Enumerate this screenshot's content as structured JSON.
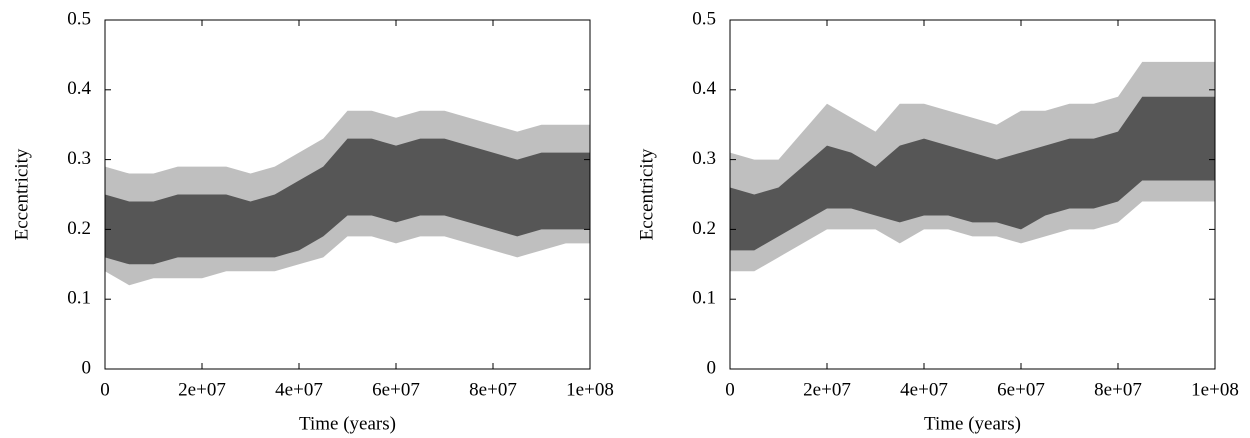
{
  "chart_data": [
    {
      "type": "band",
      "x_label": "Time (years)",
      "y_label": "Eccentricity",
      "x": [
        0,
        5000000,
        10000000,
        15000000,
        20000000,
        25000000,
        30000000,
        35000000,
        40000000,
        45000000,
        50000000,
        55000000,
        60000000,
        65000000,
        70000000,
        75000000,
        80000000,
        85000000,
        90000000,
        95000000,
        100000000
      ],
      "bands": [
        {
          "color": "#b8b8b8",
          "low": [
            0.14,
            0.12,
            0.13,
            0.13,
            0.13,
            0.14,
            0.14,
            0.14,
            0.15,
            0.16,
            0.19,
            0.19,
            0.18,
            0.19,
            0.19,
            0.18,
            0.17,
            0.16,
            0.17,
            0.18,
            0.18
          ],
          "high": [
            0.29,
            0.28,
            0.28,
            0.29,
            0.29,
            0.29,
            0.28,
            0.29,
            0.31,
            0.33,
            0.37,
            0.37,
            0.36,
            0.37,
            0.37,
            0.36,
            0.35,
            0.34,
            0.35,
            0.35,
            0.35
          ]
        },
        {
          "color": "#4a4a4a",
          "low": [
            0.16,
            0.15,
            0.15,
            0.16,
            0.16,
            0.16,
            0.16,
            0.16,
            0.17,
            0.19,
            0.22,
            0.22,
            0.21,
            0.22,
            0.22,
            0.21,
            0.2,
            0.19,
            0.2,
            0.2,
            0.2
          ],
          "high": [
            0.25,
            0.24,
            0.24,
            0.25,
            0.25,
            0.25,
            0.24,
            0.25,
            0.27,
            0.29,
            0.33,
            0.33,
            0.32,
            0.33,
            0.33,
            0.32,
            0.31,
            0.3,
            0.31,
            0.31,
            0.31
          ]
        }
      ],
      "xlim": [
        0,
        100000000
      ],
      "ylim": [
        0,
        0.5
      ],
      "xticks": [
        0,
        {
          "value": 20000000,
          "label": "2e+07"
        },
        {
          "value": 40000000,
          "label": "4e+07"
        },
        {
          "value": 60000000,
          "label": "6e+07"
        },
        {
          "value": 80000000,
          "label": "8e+07"
        },
        {
          "value": 100000000,
          "label": "1e+08"
        }
      ],
      "yticks": [
        0,
        0.1,
        0.2,
        0.3,
        0.4,
        0.5
      ]
    },
    {
      "type": "band",
      "x_label": "Time (years)",
      "y_label": "Eccentricity",
      "x": [
        0,
        5000000,
        10000000,
        15000000,
        20000000,
        25000000,
        30000000,
        35000000,
        40000000,
        45000000,
        50000000,
        55000000,
        60000000,
        65000000,
        70000000,
        75000000,
        80000000,
        85000000,
        90000000,
        95000000,
        100000000
      ],
      "bands": [
        {
          "color": "#b8b8b8",
          "low": [
            0.14,
            0.14,
            0.16,
            0.18,
            0.2,
            0.2,
            0.2,
            0.18,
            0.2,
            0.2,
            0.19,
            0.19,
            0.18,
            0.19,
            0.2,
            0.2,
            0.21,
            0.24,
            0.24,
            0.24,
            0.24
          ],
          "high": [
            0.31,
            0.3,
            0.3,
            0.34,
            0.38,
            0.36,
            0.34,
            0.38,
            0.38,
            0.37,
            0.36,
            0.35,
            0.37,
            0.37,
            0.38,
            0.38,
            0.39,
            0.44,
            0.44,
            0.44,
            0.44
          ]
        },
        {
          "color": "#4a4a4a",
          "low": [
            0.17,
            0.17,
            0.19,
            0.21,
            0.23,
            0.23,
            0.22,
            0.21,
            0.22,
            0.22,
            0.21,
            0.21,
            0.2,
            0.22,
            0.23,
            0.23,
            0.24,
            0.27,
            0.27,
            0.27,
            0.27
          ],
          "high": [
            0.26,
            0.25,
            0.26,
            0.29,
            0.32,
            0.31,
            0.29,
            0.32,
            0.33,
            0.32,
            0.31,
            0.3,
            0.31,
            0.32,
            0.33,
            0.33,
            0.34,
            0.39,
            0.39,
            0.39,
            0.39
          ]
        }
      ],
      "xlim": [
        0,
        100000000
      ],
      "ylim": [
        0,
        0.5
      ],
      "xticks": [
        0,
        {
          "value": 20000000,
          "label": "2e+07"
        },
        {
          "value": 40000000,
          "label": "4e+07"
        },
        {
          "value": 60000000,
          "label": "6e+07"
        },
        {
          "value": 80000000,
          "label": "8e+07"
        },
        {
          "value": 100000000,
          "label": "1e+08"
        }
      ],
      "yticks": [
        0,
        0.1,
        0.2,
        0.3,
        0.4,
        0.5
      ]
    }
  ]
}
